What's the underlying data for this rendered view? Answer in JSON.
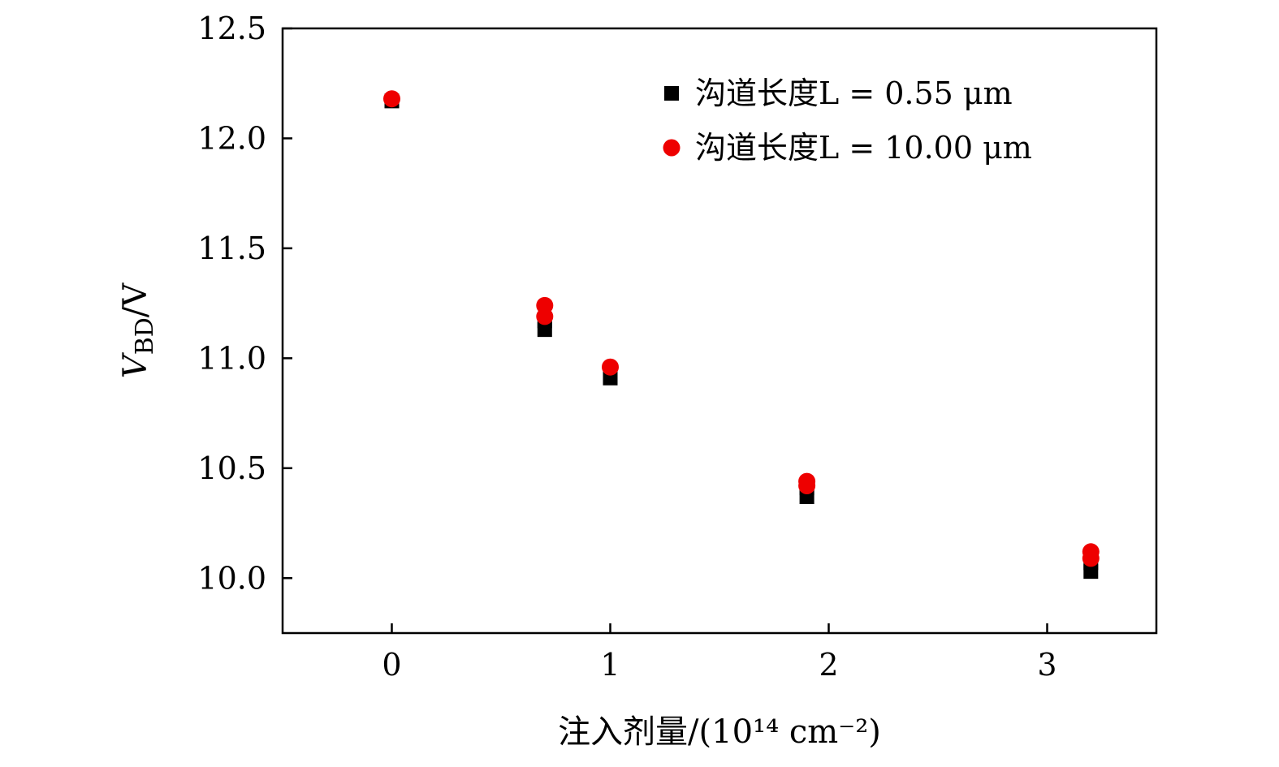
{
  "chart_data": {
    "type": "scatter",
    "xlabel": "注入剂量/(10¹⁴ cm⁻²)",
    "ylabel": "V_BD/V",
    "ylabel_main": "V",
    "ylabel_sub": "BD",
    "ylabel_tail": "/V",
    "xlim": [
      -0.5,
      3.5
    ],
    "ylim": [
      9.75,
      12.5
    ],
    "xticks": [
      0,
      1,
      2,
      3
    ],
    "xtick_labels": [
      "0",
      "1",
      "2",
      "3"
    ],
    "yticks": [
      10.0,
      10.5,
      11.0,
      11.5,
      12.0,
      12.5
    ],
    "ytick_labels": [
      "10.0",
      "10.5",
      "11.0",
      "11.5",
      "12.0",
      "12.5"
    ],
    "grid": false,
    "legend_position": "top-right",
    "series": [
      {
        "name": "沟道长度L = 0.55 μm",
        "marker": "square",
        "color": "#000000",
        "points": [
          {
            "x": 0,
            "y": 12.17
          },
          {
            "x": 0.7,
            "y": 11.13
          },
          {
            "x": 0.7,
            "y": 11.17
          },
          {
            "x": 1.0,
            "y": 10.91
          },
          {
            "x": 1.9,
            "y": 10.37
          },
          {
            "x": 1.9,
            "y": 10.41
          },
          {
            "x": 3.2,
            "y": 10.03
          },
          {
            "x": 3.2,
            "y": 10.07
          }
        ]
      },
      {
        "name": "沟道长度L = 10.00 μm",
        "marker": "circle",
        "color": "#ee0000",
        "points": [
          {
            "x": 0,
            "y": 12.18
          },
          {
            "x": 0.7,
            "y": 11.24
          },
          {
            "x": 0.7,
            "y": 11.19
          },
          {
            "x": 1.0,
            "y": 10.96
          },
          {
            "x": 1.9,
            "y": 10.44
          },
          {
            "x": 1.9,
            "y": 10.42
          },
          {
            "x": 3.2,
            "y": 10.12
          },
          {
            "x": 3.2,
            "y": 10.09
          }
        ]
      }
    ]
  }
}
